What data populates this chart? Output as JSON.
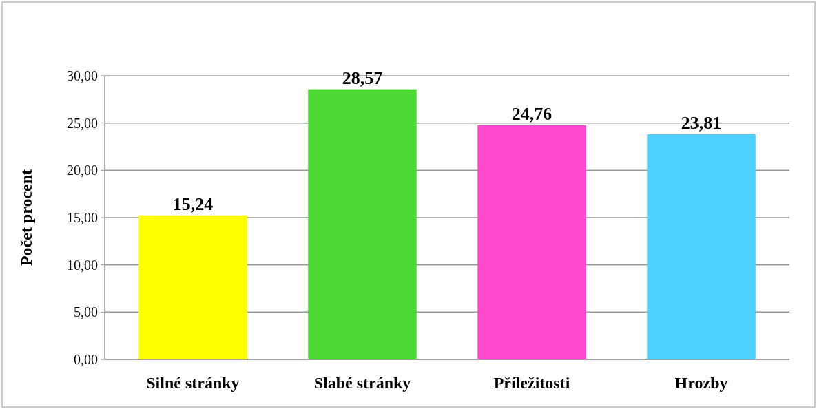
{
  "chart_data": {
    "type": "bar",
    "ylabel": "Počet procent",
    "categories": [
      "Silné stránky",
      "Slabé stránky",
      "Příležitosti",
      "Hrozby"
    ],
    "values": [
      15.24,
      28.57,
      24.76,
      23.81
    ],
    "colors": [
      "#ffff00",
      "#4cd936",
      "#ff4acd",
      "#4dd0ff"
    ],
    "value_labels": [
      "15,24",
      "28,57",
      "24,76",
      "23,81"
    ],
    "ylim": [
      0,
      30
    ],
    "yticks": [
      {
        "value": 0,
        "label": "0,00"
      },
      {
        "value": 5,
        "label": "5,00"
      },
      {
        "value": 10,
        "label": "10,00"
      },
      {
        "value": 15,
        "label": "15,00"
      },
      {
        "value": 20,
        "label": "20,00"
      },
      {
        "value": 25,
        "label": "25,00"
      },
      {
        "value": 30,
        "label": "30,00"
      }
    ],
    "grid": "y"
  }
}
